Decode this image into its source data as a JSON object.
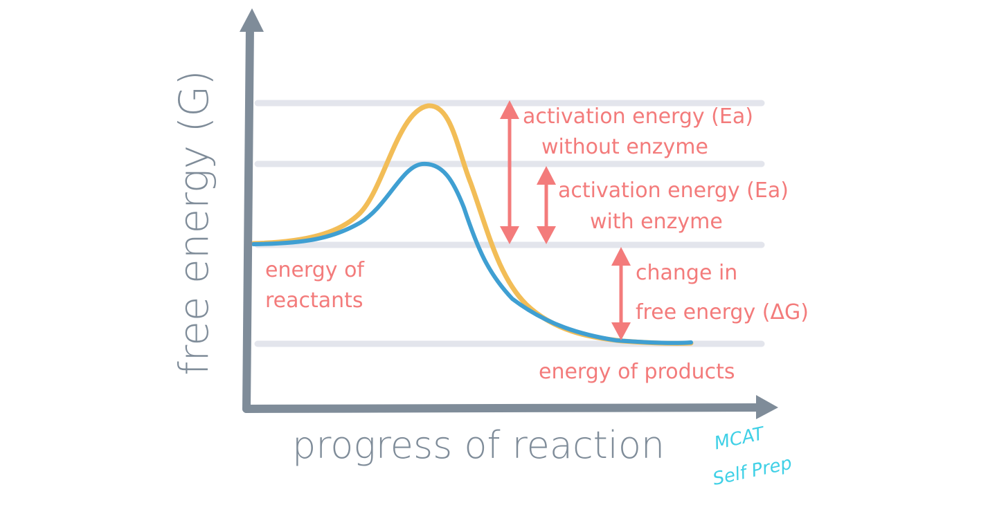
{
  "axes": {
    "y_label": "free energy (G)",
    "x_label": "progress of reaction"
  },
  "labels": {
    "reactants_line1": "energy of",
    "reactants_line2": "reactants",
    "products": "energy of products",
    "ea_without_line1": "activation energy (Ea)",
    "ea_without_line2": "without enzyme",
    "ea_with_line1": "activation energy (Ea)",
    "ea_with_line2": "with enzyme",
    "delta_g_line1": "change in",
    "delta_g_line2": "free energy (ΔG)"
  },
  "watermark": {
    "line1": "MCAT",
    "line2": "Self Prep"
  },
  "colors": {
    "axis": "#7f8c99",
    "guide": "#e3e5ec",
    "curve_without_enzyme": "#f2bd57",
    "curve_with_enzyme": "#3f9fd2",
    "annotation": "#f37b7b",
    "watermark": "#3fd0e6"
  }
}
